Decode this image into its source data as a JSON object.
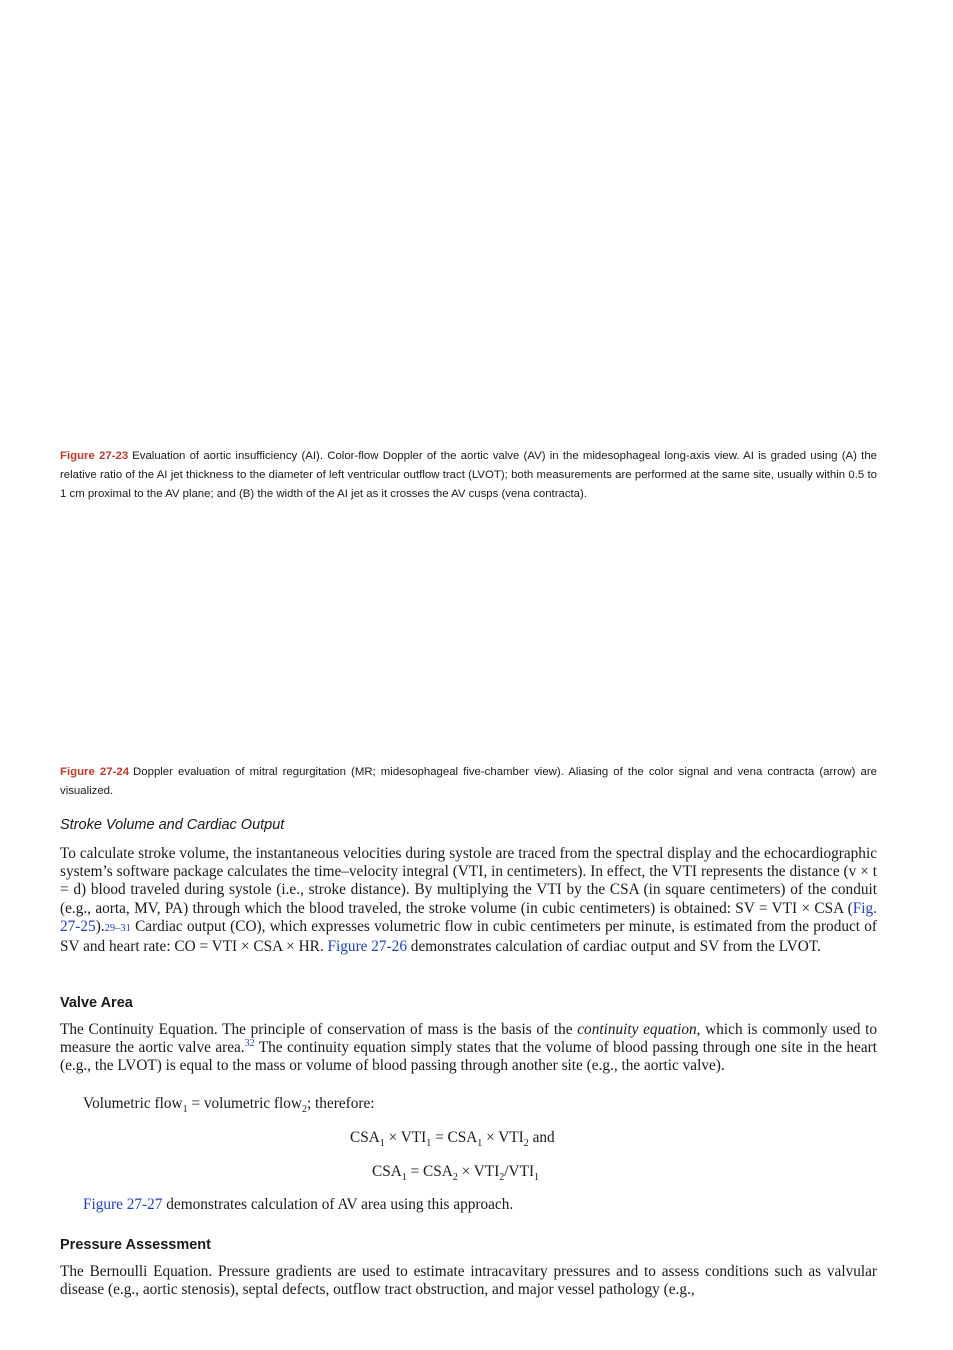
{
  "caption_23": {
    "label": "Figure 27-23",
    "text": "Evaluation of aortic insufficiency (AI). Color-flow Doppler of the aortic valve (AV) in the midesophageal long-axis view. AI is graded using (A) the relative ratio of the AI jet thickness to the diameter of left ventricular outflow tract (LVOT); both measurements are performed at the same site, usually within 0.5 to 1 cm proximal to the AV plane; and (B) the width of the AI jet as it crosses the AV cusps (vena contracta)."
  },
  "caption_24": {
    "label": "Figure 27-24",
    "text": "Doppler evaluation of mitral regurgitation (MR; midesophageal five-chamber view). Aliasing of the color signal and vena contracta (arrow) are visualized."
  },
  "section_stroke": {
    "heading": "Stroke Volume and Cardiac Output",
    "p_a": "To calculate stroke volume, the instantaneous velocities during systole are traced from the spectral display and the echocardiographic system’s software package calculates the time–velocity integral (VTI, in centimeters). In effect, the VTI represents the distance (v × t = d) blood traveled during systole (i.e., stroke distance). By multiplying the VTI by the CSA (in square centimeters) of the conduit (e.g., aorta, MV, PA) through which the blood traveled, the stroke volume (in cubic centimeters) is obtained: SV = VTI × CSA (",
    "link_a": "Fig. 27-25",
    "p_b": ").",
    "cite": "29–31",
    "p_c": " Cardiac output (CO), which expresses volumetric flow in cubic centimeters per minute, is estimated from the product of SV and heart rate: CO = VTI × CSA × HR. ",
    "link_b": "Figure 27-26",
    "p_d": " demonstrates calculation of cardiac output and SV from the LVOT."
  },
  "section_valve": {
    "heading": "Valve Area",
    "lead": "The Continuity Equation.",
    "p_a": " The principle of conservation of mass is the basis of the ",
    "em": "continuity equation",
    "p_b": ", which is commonly used to measure the aortic valve area.",
    "ref": "32",
    "p_c": " The continuity equation simply states that the volume of blood passing through one site in the heart (e.g., the LVOT) is equal to the mass or volume of blood passing through another site (e.g., the aortic valve).",
    "flow_a": "Volumetric flow",
    "flow_eq": " = volumetric flow",
    "flow_end": "; therefore:",
    "sub1": "1",
    "sub2": "2",
    "eq1_a": "CSA",
    "eq1_b": " × VTI",
    "eq1_c": " = CSA",
    "eq1_d": " × VTI",
    "eq1_e": " and",
    "eq2_a": "CSA",
    "eq2_b": " = CSA",
    "eq2_c": " × VTI",
    "eq2_d": "/VTI",
    "fig_link": "Figure 27-27",
    "fig_text": " demonstrates calculation of AV area using this approach."
  },
  "section_pressure": {
    "heading": "Pressure Assessment",
    "lead": "The Bernoulli Equation.",
    "text": " Pressure gradients are used to estimate intracavitary pressures and to assess conditions such as valvular disease (e.g., aortic stenosis), septal defects, outflow tract obstruction, and major vessel pathology (e.g.,"
  },
  "colors": {
    "figure_label": "#c0392b",
    "link": "#1f3fbf"
  }
}
